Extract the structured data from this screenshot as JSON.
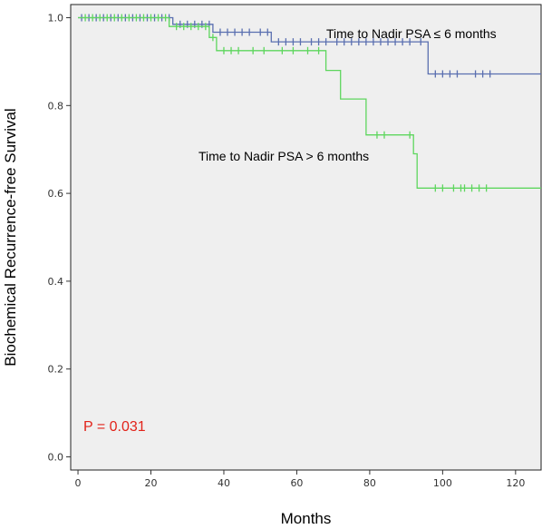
{
  "chart_data": {
    "type": "line",
    "subtype": "kaplan-meier",
    "xlabel": "Months",
    "ylabel": "Biochemical Recurrence-free Survival",
    "xlim": [
      -2,
      127
    ],
    "ylim": [
      -0.03,
      1.03
    ],
    "xticks": [
      0,
      20,
      40,
      60,
      80,
      100,
      120
    ],
    "yticks": [
      0.0,
      0.2,
      0.4,
      0.6,
      0.8,
      1.0
    ],
    "ytick_labels": [
      "0.0",
      "0.2",
      "0.4",
      "0.6",
      "0.8",
      "1.0"
    ],
    "plot_background": "#efefef",
    "series": [
      {
        "label": "Time to Nadir PSA ≤ 6 months",
        "color": "#5a6fb0",
        "steps": [
          [
            0,
            1.0
          ],
          [
            26,
            1.0
          ],
          [
            26,
            0.985
          ],
          [
            37,
            0.985
          ],
          [
            37,
            0.967
          ],
          [
            53,
            0.967
          ],
          [
            53,
            0.945
          ],
          [
            96,
            0.945
          ],
          [
            96,
            0.872
          ],
          [
            127,
            0.872
          ]
        ],
        "censored": [
          [
            1,
            1.0
          ],
          [
            3,
            1.0
          ],
          [
            5,
            1.0
          ],
          [
            7,
            1.0
          ],
          [
            9,
            1.0
          ],
          [
            11,
            1.0
          ],
          [
            13,
            1.0
          ],
          [
            15,
            1.0
          ],
          [
            17,
            1.0
          ],
          [
            19,
            1.0
          ],
          [
            21,
            1.0
          ],
          [
            23,
            1.0
          ],
          [
            25,
            1.0
          ],
          [
            28,
            0.985
          ],
          [
            30,
            0.985
          ],
          [
            32,
            0.985
          ],
          [
            34,
            0.985
          ],
          [
            36,
            0.985
          ],
          [
            39,
            0.967
          ],
          [
            41,
            0.967
          ],
          [
            43,
            0.967
          ],
          [
            45,
            0.967
          ],
          [
            47,
            0.967
          ],
          [
            50,
            0.967
          ],
          [
            52,
            0.967
          ],
          [
            55,
            0.945
          ],
          [
            57,
            0.945
          ],
          [
            59,
            0.945
          ],
          [
            61,
            0.945
          ],
          [
            64,
            0.945
          ],
          [
            66,
            0.945
          ],
          [
            68,
            0.945
          ],
          [
            71,
            0.945
          ],
          [
            73,
            0.945
          ],
          [
            75,
            0.945
          ],
          [
            77,
            0.945
          ],
          [
            79,
            0.945
          ],
          [
            81,
            0.945
          ],
          [
            83,
            0.945
          ],
          [
            85,
            0.945
          ],
          [
            87,
            0.945
          ],
          [
            89,
            0.945
          ],
          [
            91,
            0.945
          ],
          [
            94,
            0.945
          ],
          [
            98,
            0.872
          ],
          [
            100,
            0.872
          ],
          [
            102,
            0.872
          ],
          [
            104,
            0.872
          ],
          [
            109,
            0.872
          ],
          [
            111,
            0.872
          ],
          [
            113,
            0.872
          ]
        ]
      },
      {
        "label": "Time to Nadir PSA > 6 months",
        "color": "#5ed65e",
        "steps": [
          [
            0,
            1.0
          ],
          [
            25,
            1.0
          ],
          [
            25,
            0.98
          ],
          [
            36,
            0.98
          ],
          [
            36,
            0.955
          ],
          [
            38,
            0.955
          ],
          [
            38,
            0.925
          ],
          [
            68,
            0.925
          ],
          [
            68,
            0.88
          ],
          [
            72,
            0.88
          ],
          [
            72,
            0.815
          ],
          [
            79,
            0.815
          ],
          [
            79,
            0.733
          ],
          [
            92,
            0.733
          ],
          [
            92,
            0.69
          ],
          [
            93,
            0.69
          ],
          [
            93,
            0.612
          ],
          [
            127,
            0.612
          ]
        ],
        "censored": [
          [
            2,
            1.0
          ],
          [
            4,
            1.0
          ],
          [
            6,
            1.0
          ],
          [
            8,
            1.0
          ],
          [
            10,
            1.0
          ],
          [
            12,
            1.0
          ],
          [
            14,
            1.0
          ],
          [
            16,
            1.0
          ],
          [
            18,
            1.0
          ],
          [
            20,
            1.0
          ],
          [
            22,
            1.0
          ],
          [
            24,
            1.0
          ],
          [
            27,
            0.98
          ],
          [
            29,
            0.98
          ],
          [
            31,
            0.98
          ],
          [
            33,
            0.98
          ],
          [
            35,
            0.98
          ],
          [
            37,
            0.955
          ],
          [
            40,
            0.925
          ],
          [
            42,
            0.925
          ],
          [
            44,
            0.925
          ],
          [
            48,
            0.925
          ],
          [
            51,
            0.925
          ],
          [
            56,
            0.925
          ],
          [
            59,
            0.925
          ],
          [
            63,
            0.925
          ],
          [
            66,
            0.925
          ],
          [
            82,
            0.733
          ],
          [
            84,
            0.733
          ],
          [
            91,
            0.733
          ],
          [
            98,
            0.612
          ],
          [
            100,
            0.612
          ],
          [
            103,
            0.612
          ],
          [
            105,
            0.612
          ],
          [
            106,
            0.612
          ],
          [
            108,
            0.612
          ],
          [
            110,
            0.612
          ],
          [
            112,
            0.612
          ]
        ]
      }
    ],
    "annotations": {
      "label_le6": "Time to Nadir PSA ≤ 6 months",
      "label_gt6": "Time to Nadir PSA > 6 months",
      "p_value": "P = 0.031",
      "p_value_color": "#e2231a"
    }
  }
}
